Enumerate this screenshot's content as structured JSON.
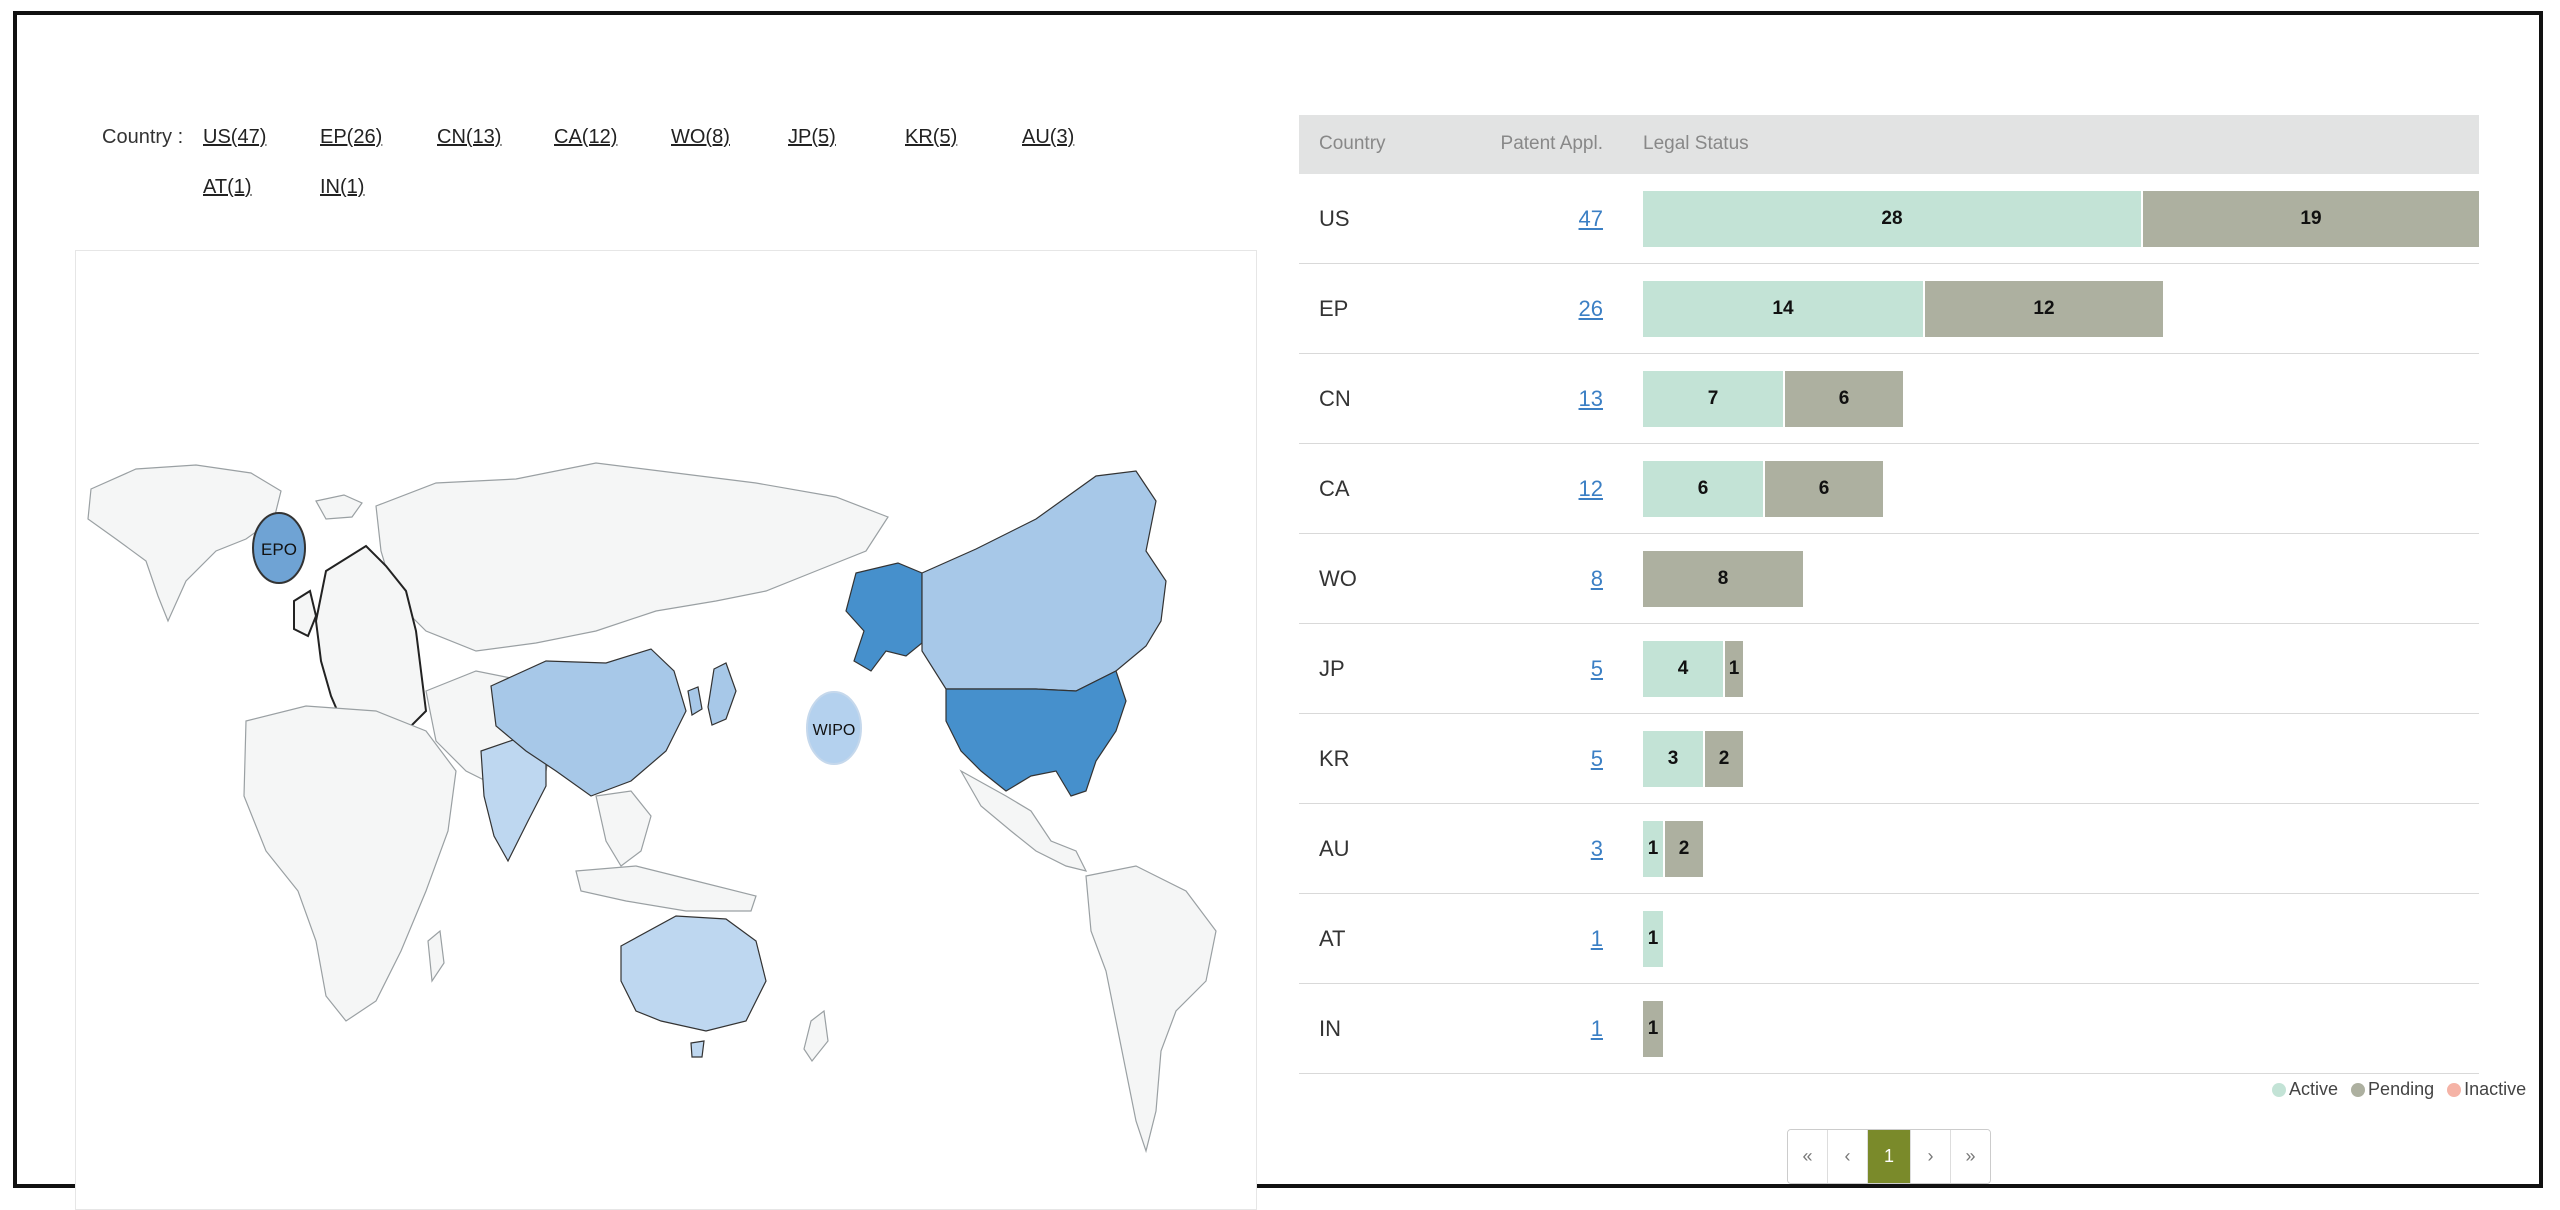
{
  "filter": {
    "label": "Country :",
    "links": [
      "US(47)",
      "EP(26)",
      "CN(13)",
      "CA(12)",
      "WO(8)",
      "JP(5)",
      "KR(5)",
      "AU(3)",
      "AT(1)",
      "IN(1)"
    ]
  },
  "map": {
    "bubbles": {
      "epo": "EPO",
      "wipo": "WIPO"
    },
    "colors": {
      "high": "#4690cc",
      "mid": "#a7c8e8",
      "low": "#bed7f0",
      "none": "#f5f6f6"
    }
  },
  "chart_data": {
    "type": "bar",
    "stacked": true,
    "orientation": "horizontal",
    "columns": [
      "Country",
      "Patent Appl.",
      "Legal Status"
    ],
    "categories": [
      "US",
      "EP",
      "CN",
      "CA",
      "WO",
      "JP",
      "KR",
      "AU",
      "AT",
      "IN"
    ],
    "totals": [
      47,
      26,
      13,
      12,
      8,
      5,
      5,
      3,
      1,
      1
    ],
    "series": [
      {
        "name": "Active",
        "color": "#c3e3d6",
        "values": [
          28,
          14,
          7,
          6,
          0,
          4,
          3,
          1,
          1,
          0
        ]
      },
      {
        "name": "Pending",
        "color": "#adb0a0",
        "values": [
          19,
          12,
          6,
          6,
          8,
          1,
          2,
          2,
          0,
          1
        ]
      },
      {
        "name": "Inactive",
        "color": "#f5b3a6",
        "values": [
          0,
          0,
          0,
          0,
          0,
          0,
          0,
          0,
          0,
          0
        ]
      }
    ]
  },
  "pagination": {
    "first": "«",
    "prev": "‹",
    "current": "1",
    "next": "›",
    "last": "»"
  }
}
